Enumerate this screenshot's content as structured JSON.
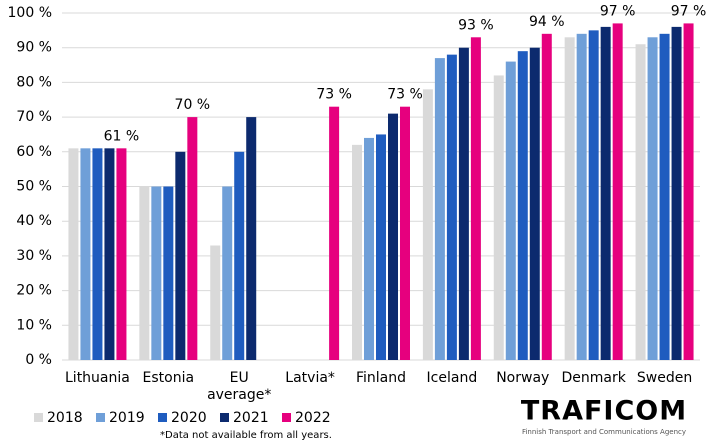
{
  "chart_data": {
    "type": "bar",
    "categories": [
      "Lithuania",
      "Estonia",
      "EU average*",
      "Latvia*",
      "Finland",
      "Iceland",
      "Norway",
      "Denmark",
      "Sweden"
    ],
    "series": [
      {
        "name": "2018",
        "color": "#d9d9d9",
        "values": [
          61,
          50,
          33,
          null,
          62,
          78,
          82,
          93,
          91
        ]
      },
      {
        "name": "2019",
        "color": "#6f9fd8",
        "values": [
          61,
          50,
          50,
          null,
          64,
          87,
          86,
          94,
          93
        ]
      },
      {
        "name": "2020",
        "color": "#1f5cbf",
        "values": [
          61,
          50,
          60,
          null,
          65,
          88,
          89,
          95,
          94
        ]
      },
      {
        "name": "2021",
        "color": "#0c2a6e",
        "values": [
          61,
          60,
          70,
          null,
          71,
          90,
          90,
          96,
          96
        ]
      },
      {
        "name": "2022",
        "color": "#e6007e",
        "values": [
          61,
          70,
          null,
          73,
          73,
          93,
          94,
          97,
          97
        ],
        "value_labels": [
          "61 %",
          "70 %",
          null,
          "73 %",
          "73 %",
          "93 %",
          "94 %",
          "97 %",
          "97 %"
        ]
      }
    ],
    "ylim": [
      0,
      100
    ],
    "yticks": [
      {
        "value": 0,
        "label": "0 %"
      },
      {
        "value": 10,
        "label": "10 %"
      },
      {
        "value": 20,
        "label": "20 %"
      },
      {
        "value": 30,
        "label": "30 %"
      },
      {
        "value": 40,
        "label": "40 %"
      },
      {
        "value": 50,
        "label": "50 %"
      },
      {
        "value": 60,
        "label": "60 %"
      },
      {
        "value": 70,
        "label": "70 %"
      },
      {
        "value": 80,
        "label": "80 %"
      },
      {
        "value": 90,
        "label": "90 %"
      },
      {
        "value": 100,
        "label": "100 %"
      }
    ],
    "grid": true,
    "legend": "bottom-left",
    "note": "*Data not available from all years.",
    "logo": "TRAFICOM",
    "logo_tagline": "Finnish Transport and Communications Agency"
  }
}
